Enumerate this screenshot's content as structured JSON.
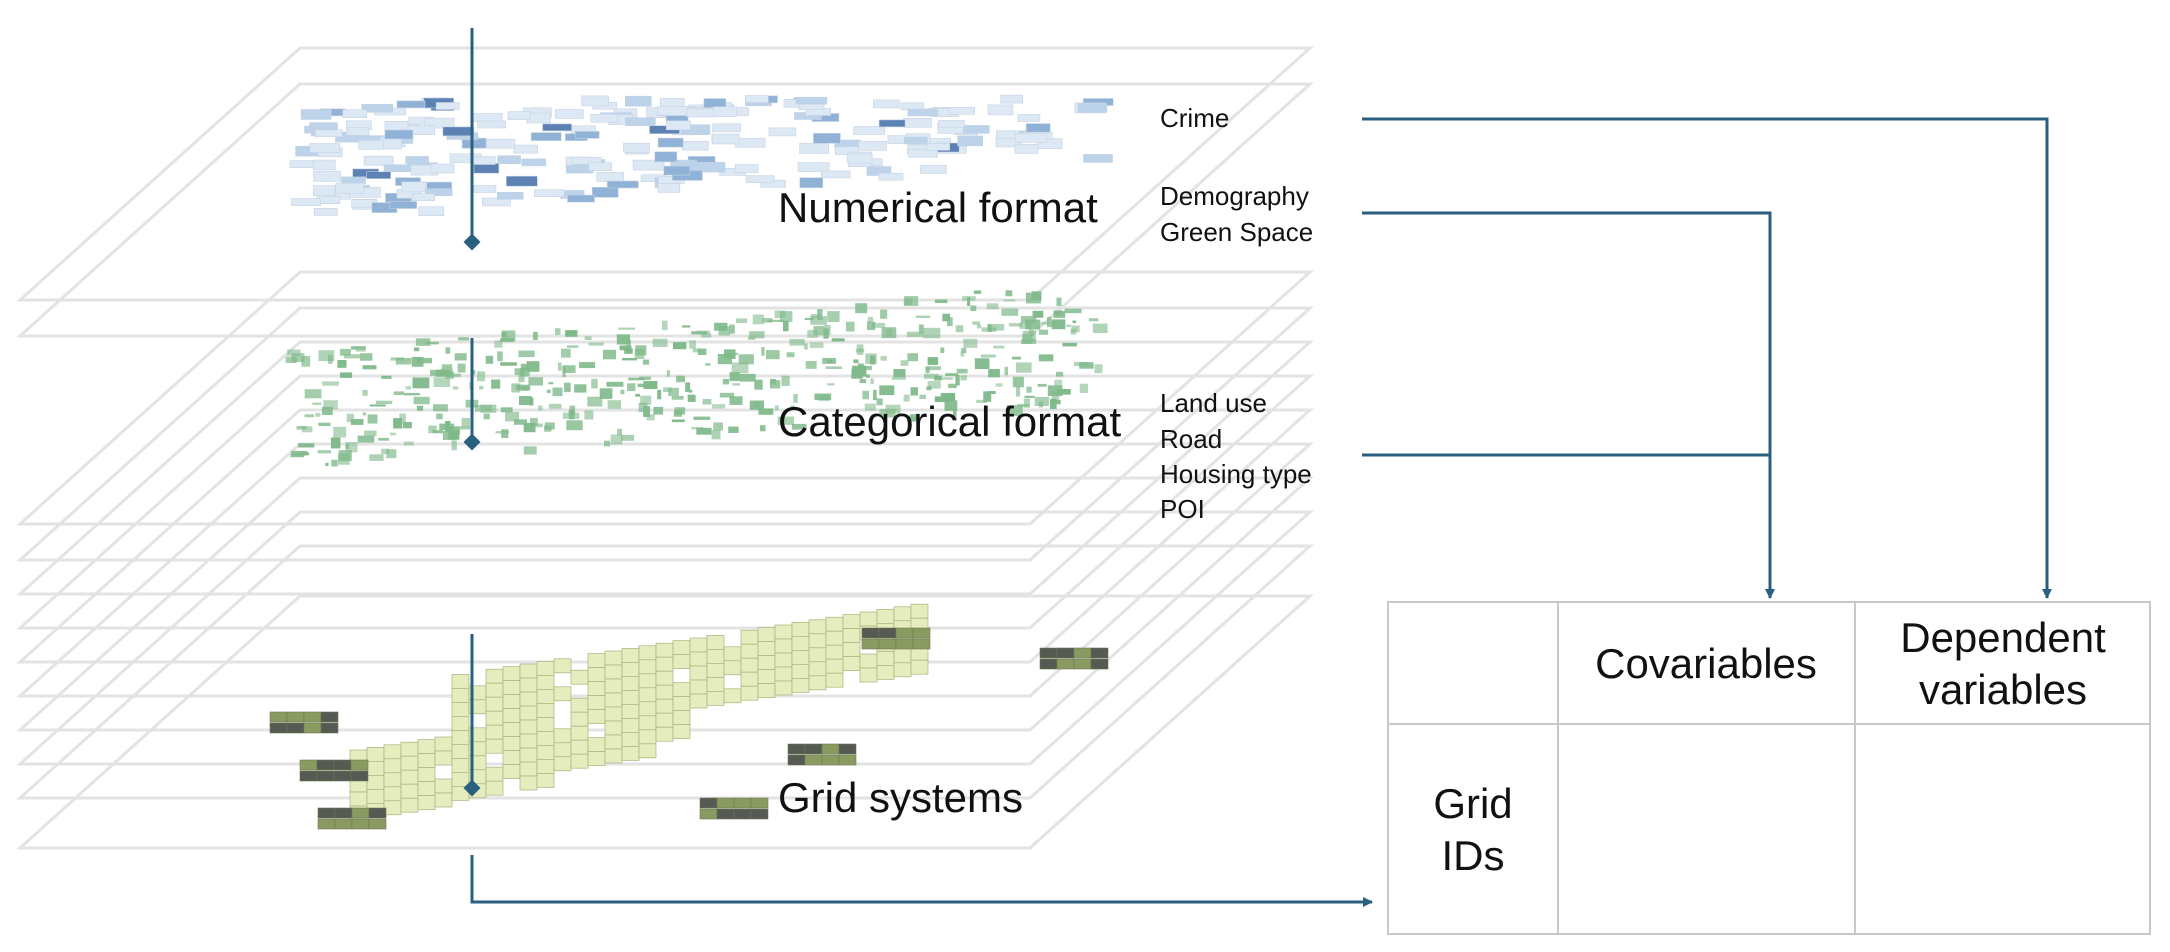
{
  "layers": {
    "numerical": {
      "title": "Numerical format",
      "variables": [
        "Crime",
        "Demography",
        "Green Space"
      ]
    },
    "categorical": {
      "title": "Categorical format",
      "variables": [
        "Land use",
        "Road",
        "Housing type",
        "POI"
      ]
    },
    "grid": {
      "title": "Grid systems"
    }
  },
  "table": {
    "header_col1": "Covariables",
    "header_col2_line1": "Dependent",
    "header_col2_line2": "variables",
    "row_label_line1": "Grid",
    "row_label_line2": "IDs"
  },
  "colors": {
    "connector": "#2b5f80",
    "layer_outline": "#e3e3e3",
    "numerical_cells": [
      "#dce8f4",
      "#bcd3ea",
      "#8fb2d6",
      "#5c82b4"
    ],
    "categorical_fill": "#7fb98a",
    "grid_light": "#e5edbf",
    "grid_mid": "#8a9b62",
    "grid_dark": "#555a52",
    "table_border": "#c8c8c8"
  }
}
